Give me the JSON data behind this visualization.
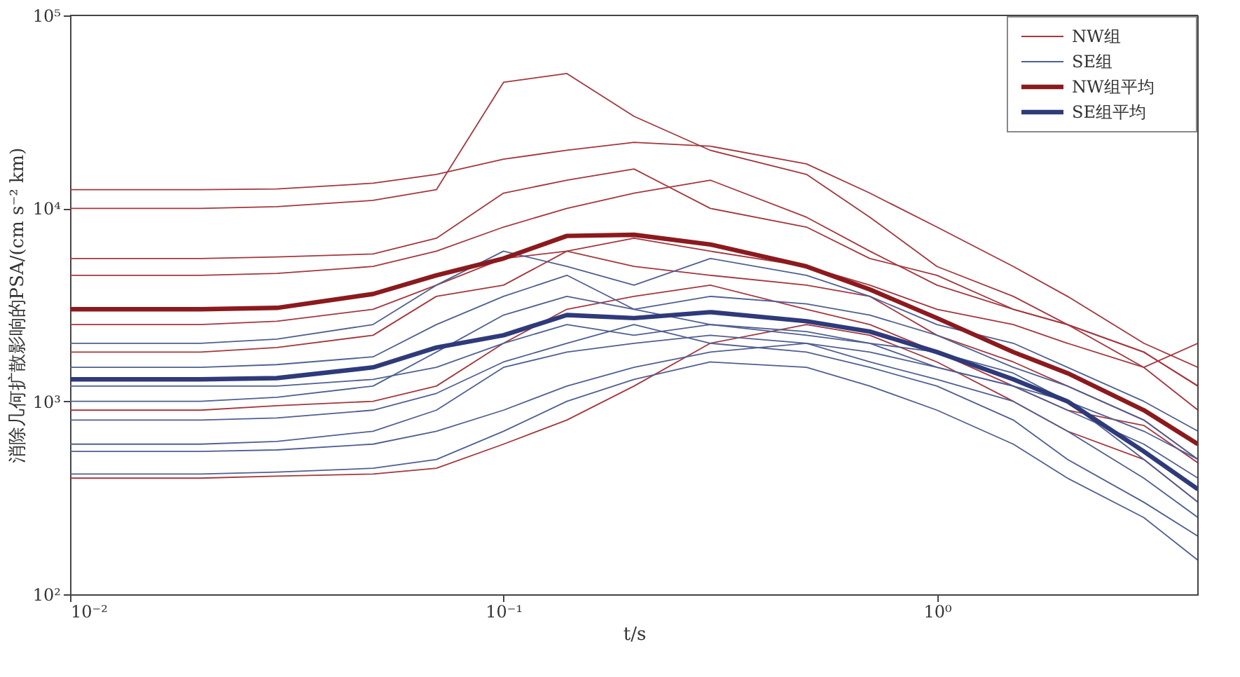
{
  "chart_data": {
    "type": "line",
    "xlabel": "t/s",
    "ylabel": "消除几何扩散影响的PSA/(cm s⁻² km)",
    "x": [
      0.01,
      0.02,
      0.03,
      0.05,
      0.07,
      0.1,
      0.14,
      0.2,
      0.3,
      0.5,
      0.7,
      1,
      1.5,
      2,
      3,
      4
    ],
    "log": "xy",
    "xlim": [
      0.01,
      4
    ],
    "ylim": [
      100,
      100000
    ],
    "xticks": [
      {
        "value": 0.01,
        "label": "10⁻²"
      },
      {
        "value": 0.1,
        "label": "10⁻¹"
      },
      {
        "value": 1,
        "label": "10⁰"
      }
    ],
    "yticks": [
      {
        "value": 100,
        "label": "10²"
      },
      {
        "value": 1000,
        "label": "10³"
      },
      {
        "value": 10000,
        "label": "10⁴"
      },
      {
        "value": 100000,
        "label": "10⁵"
      }
    ],
    "grid": false,
    "legend": "top right",
    "line_style": "solid",
    "marker": "none",
    "series": [
      {
        "name": "NW组",
        "color": "#a3373e",
        "values": [
          12500,
          12500,
          12600,
          13500,
          15000,
          18000,
          20000,
          22000,
          21000,
          17000,
          12000,
          8000,
          5000,
          3500,
          2000,
          1500
        ]
      },
      {
        "color": "#a3373e",
        "values": [
          10000,
          10000,
          10200,
          11000,
          12500,
          45000,
          50000,
          30000,
          20000,
          15000,
          9000,
          5000,
          3500,
          2500,
          1800,
          1200
        ]
      },
      {
        "color": "#a3373e",
        "values": [
          5500,
          5500,
          5600,
          5800,
          7000,
          12000,
          14000,
          16000,
          10000,
          8000,
          5500,
          4500,
          3000,
          2500,
          1500,
          900
        ]
      },
      {
        "color": "#a3373e",
        "values": [
          4500,
          4500,
          4600,
          5000,
          6000,
          8000,
          10000,
          12000,
          14000,
          9000,
          6000,
          4000,
          3000,
          2500,
          1800,
          1200
        ]
      },
      {
        "color": "#a3373e",
        "values": [
          2500,
          2500,
          2600,
          3000,
          4000,
          5500,
          6000,
          7000,
          6000,
          5000,
          4000,
          3000,
          2500,
          2000,
          1500,
          2000
        ]
      },
      {
        "color": "#a3373e",
        "values": [
          1800,
          1800,
          1900,
          2200,
          3500,
          4000,
          6000,
          5000,
          4500,
          4000,
          3500,
          2200,
          1600,
          1200,
          800,
          500
        ]
      },
      {
        "color": "#a3373e",
        "values": [
          900,
          900,
          950,
          1000,
          1200,
          2000,
          3000,
          3500,
          4000,
          3000,
          2500,
          1800,
          1200,
          900,
          750,
          480
        ]
      },
      {
        "color": "#a3373e",
        "values": [
          400,
          400,
          410,
          420,
          450,
          600,
          800,
          1200,
          2000,
          2500,
          2200,
          1600,
          1000,
          700,
          500,
          300
        ]
      },
      {
        "name": "SE组",
        "color": "#4f5f91",
        "values": [
          2000,
          2000,
          2100,
          2500,
          4000,
          6000,
          5000,
          4000,
          5500,
          4500,
          3500,
          2500,
          2000,
          1500,
          1000,
          700
        ]
      },
      {
        "color": "#4f5f91",
        "values": [
          1500,
          1500,
          1550,
          1700,
          2500,
          3500,
          4500,
          3000,
          3500,
          3200,
          2800,
          2200,
          1500,
          1200,
          800,
          500
        ]
      },
      {
        "color": "#4f5f91",
        "values": [
          1200,
          1200,
          1200,
          1300,
          1500,
          2000,
          2500,
          2200,
          2500,
          2300,
          2000,
          1800,
          1400,
          1000,
          500,
          300
        ]
      },
      {
        "color": "#4f5f91",
        "values": [
          800,
          800,
          820,
          900,
          1100,
          1600,
          2000,
          2500,
          2000,
          1800,
          1500,
          1200,
          800,
          500,
          300,
          200
        ]
      },
      {
        "color": "#4f5f91",
        "values": [
          600,
          600,
          620,
          700,
          900,
          1500,
          1800,
          2000,
          2200,
          2000,
          1600,
          1300,
          1000,
          700,
          400,
          250
        ]
      },
      {
        "color": "#4f5f91",
        "values": [
          550,
          550,
          560,
          600,
          700,
          900,
          1200,
          1500,
          1800,
          2000,
          1800,
          1500,
          1200,
          900,
          600,
          400
        ]
      },
      {
        "color": "#4f5f91",
        "values": [
          420,
          420,
          430,
          450,
          500,
          700,
          1000,
          1300,
          1600,
          1500,
          1200,
          900,
          600,
          400,
          250,
          150
        ]
      },
      {
        "color": "#4f5f91",
        "values": [
          1000,
          1000,
          1050,
          1200,
          1800,
          2800,
          3500,
          3000,
          2500,
          2200,
          2000,
          1500,
          1200,
          1000,
          700,
          500
        ]
      },
      {
        "name": "NW组平均",
        "color": "#8b1a1e",
        "values": [
          3000,
          3000,
          3050,
          3600,
          4500,
          5500,
          7200,
          7300,
          6500,
          5000,
          3800,
          2700,
          1800,
          1400,
          900,
          600
        ]
      },
      {
        "name": "SE组平均",
        "color": "#2e3a7a",
        "values": [
          1300,
          1300,
          1320,
          1500,
          1900,
          2200,
          2800,
          2700,
          2900,
          2600,
          2300,
          1800,
          1300,
          1000,
          550,
          350
        ]
      }
    ]
  }
}
